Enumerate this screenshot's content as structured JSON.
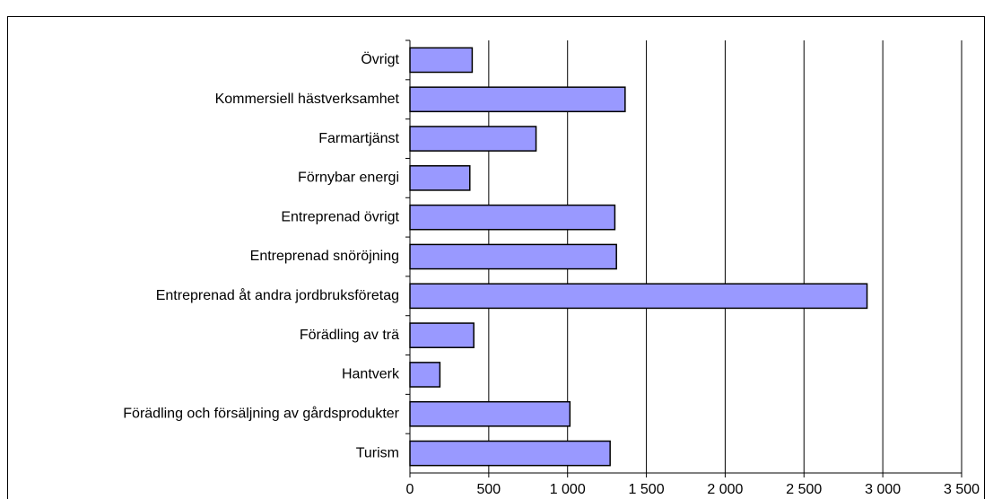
{
  "chart_data": {
    "type": "hbar",
    "categories": [
      "Övrigt",
      "Kommersiell hästverksamhet",
      "Farmartjänst",
      "Förnybar energi",
      "Entreprenad övrigt",
      "Entreprenad snöröjning",
      "Entreprenad åt andra jordbruksföretag",
      "Förädling av trä",
      "Hantverk",
      "Förädling och försäljning av gårdsprodukter",
      "Turism"
    ],
    "values": [
      395,
      1365,
      800,
      380,
      1300,
      1310,
      2900,
      405,
      190,
      1015,
      1270
    ],
    "color": "#9999ff",
    "xlim": [
      0,
      3500
    ],
    "xticks": [
      0,
      500,
      {
        "value": 1000,
        "label": "1 000"
      },
      {
        "value": 1500,
        "label": "1 500"
      },
      {
        "value": 2000,
        "label": "2 000"
      },
      {
        "value": 2500,
        "label": "2 500"
      },
      {
        "value": 3000,
        "label": "3 000"
      },
      {
        "value": 3500,
        "label": "3 500"
      }
    ],
    "grid": true
  }
}
